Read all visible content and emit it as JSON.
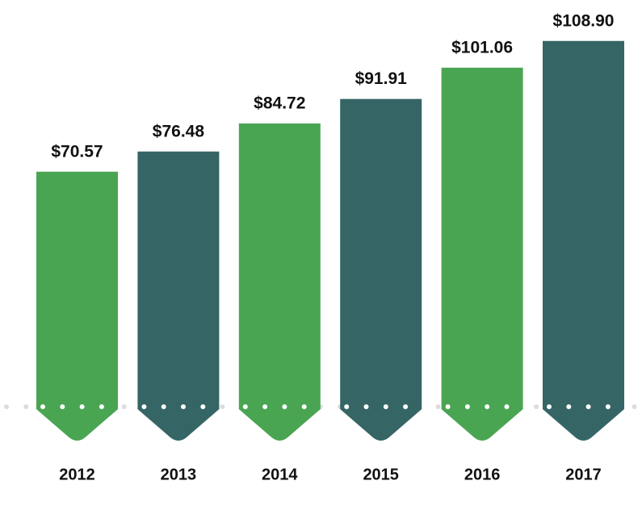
{
  "chart_data": {
    "type": "bar",
    "categories": [
      "2012",
      "2013",
      "2014",
      "2015",
      "2016",
      "2017"
    ],
    "values": [
      70.57,
      76.48,
      84.72,
      91.91,
      101.06,
      108.9
    ],
    "value_labels": [
      "$70.57",
      "$76.48",
      "$84.72",
      "$91.91",
      "$101.06",
      "$108.90"
    ],
    "colors": [
      "#4aa553",
      "#366566",
      "#4aa553",
      "#366566",
      "#4aa553",
      "#366566"
    ]
  }
}
